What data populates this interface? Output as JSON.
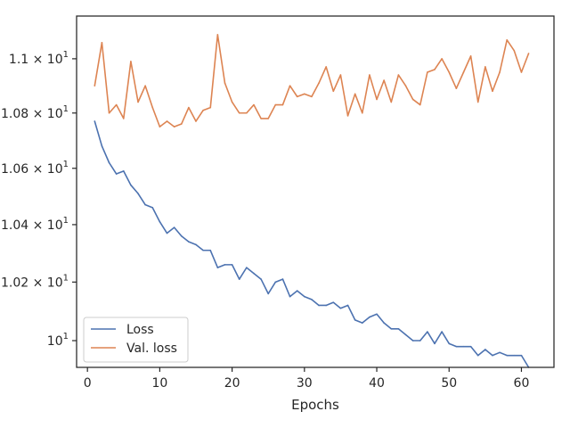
{
  "chart_data": {
    "type": "line",
    "xlabel": "Epochs",
    "ylabel": "",
    "xlim": [
      -1.5,
      64.5
    ],
    "ylim": [
      9.91,
      11.16
    ],
    "y_scale": "log",
    "grid": false,
    "legend_position": "lower-left",
    "x_ticks": [
      0,
      10,
      20,
      30,
      40,
      50,
      60
    ],
    "x_tick_labels": [
      "0",
      "10",
      "20",
      "30",
      "40",
      "50",
      "60"
    ],
    "y_ticks": [
      {
        "value": 10.0,
        "mant": "",
        "exp": "1"
      },
      {
        "value": 10.2,
        "mant": "1.02",
        "exp": "1"
      },
      {
        "value": 10.4,
        "mant": "1.04",
        "exp": "1"
      },
      {
        "value": 10.6,
        "mant": "1.06",
        "exp": "1"
      },
      {
        "value": 10.8,
        "mant": "1.08",
        "exp": "1"
      },
      {
        "value": 11.0,
        "mant": "1.1",
        "exp": "1"
      }
    ],
    "x": [
      1,
      2,
      3,
      4,
      5,
      6,
      7,
      8,
      9,
      10,
      11,
      12,
      13,
      14,
      15,
      16,
      17,
      18,
      19,
      20,
      21,
      22,
      23,
      24,
      25,
      26,
      27,
      28,
      29,
      30,
      31,
      32,
      33,
      34,
      35,
      36,
      37,
      38,
      39,
      40,
      41,
      42,
      43,
      44,
      45,
      46,
      47,
      48,
      49,
      50,
      51,
      52,
      53,
      54,
      55,
      56,
      57,
      58,
      59,
      60,
      61
    ],
    "series": [
      {
        "name": "Loss",
        "color": "#4c72b0",
        "values": [
          10.77,
          10.68,
          10.62,
          10.58,
          10.59,
          10.54,
          10.51,
          10.47,
          10.46,
          10.41,
          10.37,
          10.39,
          10.36,
          10.34,
          10.33,
          10.31,
          10.31,
          10.25,
          10.26,
          10.26,
          10.21,
          10.25,
          10.23,
          10.21,
          10.16,
          10.2,
          10.21,
          10.15,
          10.17,
          10.15,
          10.14,
          10.12,
          10.12,
          10.13,
          10.11,
          10.12,
          10.07,
          10.06,
          10.08,
          10.09,
          10.06,
          10.04,
          10.04,
          10.02,
          10.0,
          10.0,
          10.03,
          9.99,
          10.03,
          9.99,
          9.98,
          9.98,
          9.98,
          9.95,
          9.97,
          9.95,
          9.96,
          9.95,
          9.95,
          9.95,
          9.91
        ]
      },
      {
        "name": "Val. loss",
        "color": "#dd8452",
        "values": [
          10.9,
          11.06,
          10.8,
          10.83,
          10.78,
          10.99,
          10.84,
          10.9,
          10.82,
          10.75,
          10.77,
          10.75,
          10.76,
          10.82,
          10.77,
          10.81,
          10.82,
          11.09,
          10.91,
          10.84,
          10.8,
          10.8,
          10.83,
          10.78,
          10.78,
          10.83,
          10.83,
          10.9,
          10.86,
          10.87,
          10.86,
          10.91,
          10.97,
          10.88,
          10.94,
          10.79,
          10.87,
          10.8,
          10.94,
          10.85,
          10.92,
          10.84,
          10.94,
          10.9,
          10.85,
          10.83,
          10.95,
          10.96,
          11.0,
          10.95,
          10.89,
          10.95,
          11.01,
          10.84,
          10.97,
          10.88,
          10.95,
          11.07,
          11.03,
          10.95,
          11.02
        ]
      }
    ]
  }
}
